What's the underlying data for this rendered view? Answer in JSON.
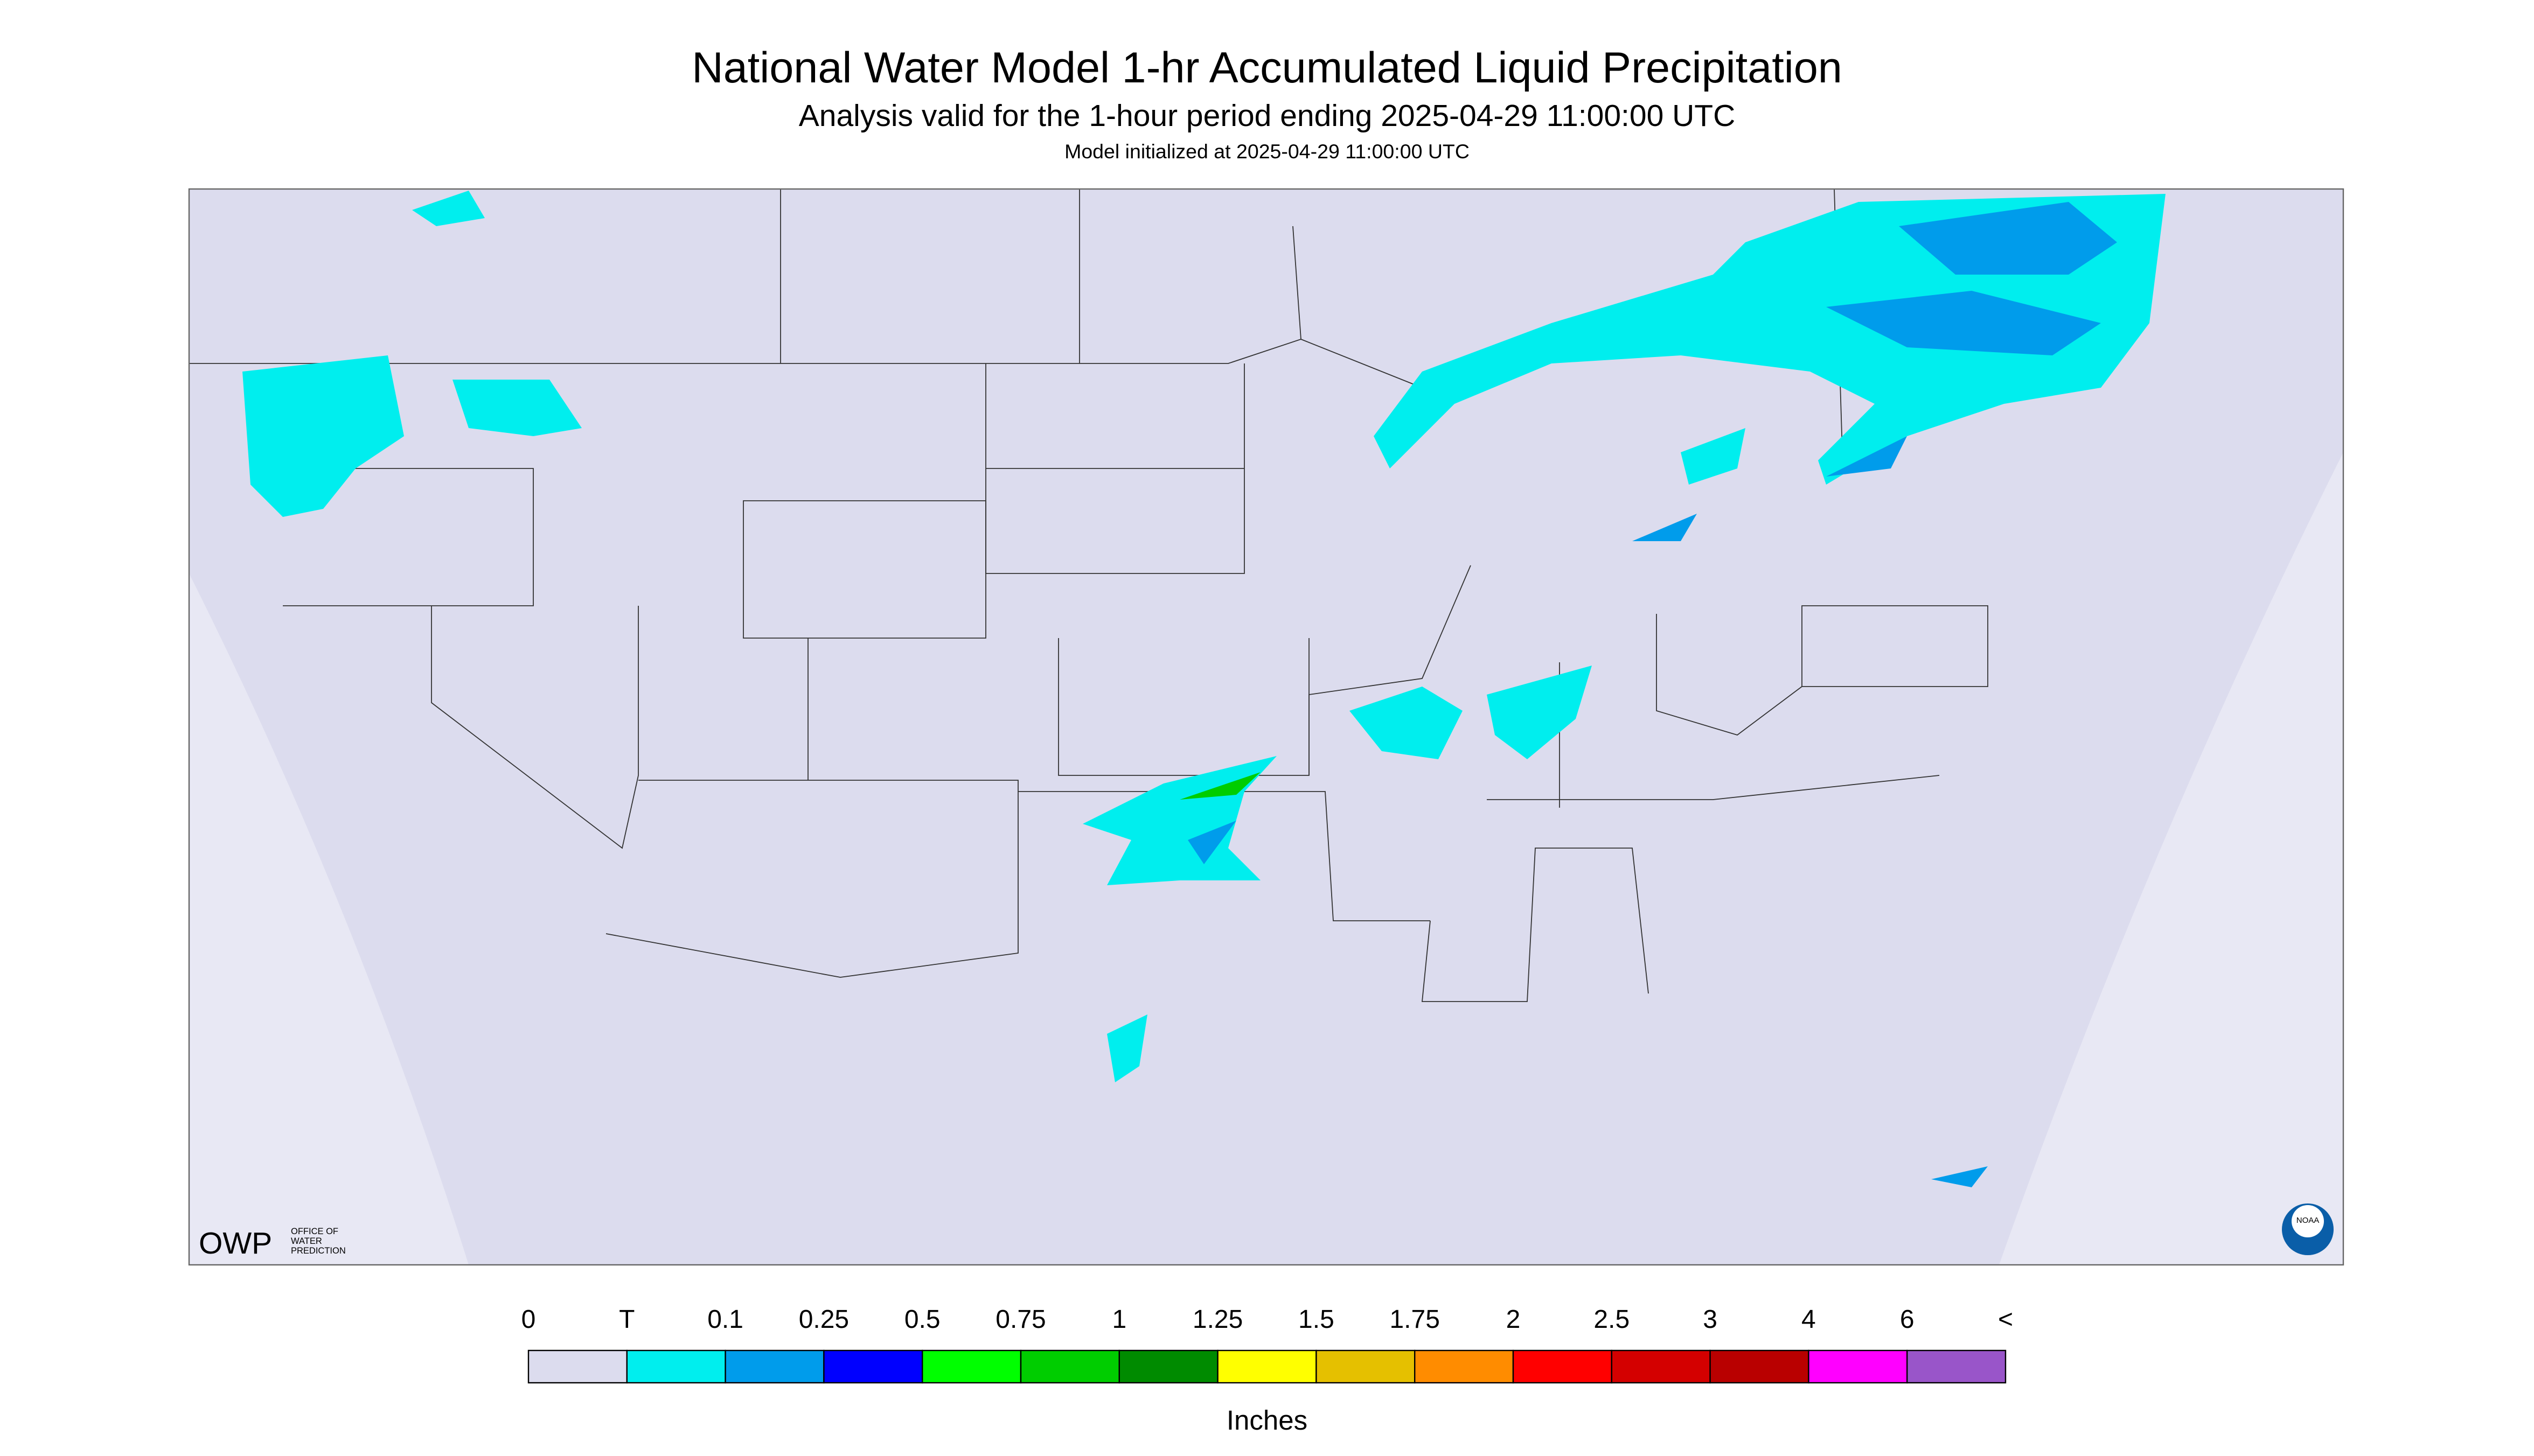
{
  "header": {
    "title": "National Water Model 1-hr Accumulated Liquid Precipitation",
    "subtitle": "Analysis valid for the 1-hour period ending 2025-04-29 11:00:00 UTC",
    "init": "Model initialized at 2025-04-29 11:00:00 UTC"
  },
  "logos": {
    "owp": "OWP",
    "owp_lines": [
      "OFFICE OF",
      "WATER",
      "PREDICTION"
    ],
    "noaa": "NOAA"
  },
  "colorbar": {
    "labels": [
      "0",
      "T",
      "0.1",
      "0.25",
      "0.5",
      "0.75",
      "1",
      "1.25",
      "1.5",
      "1.75",
      "2",
      "2.5",
      "3",
      "4",
      "6",
      "<"
    ],
    "colors": [
      "#dcdcee",
      "#00eeee",
      "#009ceb",
      "#0000ff",
      "#00ff00",
      "#00cd00",
      "#008b00",
      "#ffff00",
      "#e5c000",
      "#ff8c00",
      "#ff0000",
      "#d40000",
      "#b90000",
      "#ff00ff",
      "#9955c9"
    ],
    "unit": "Inches"
  }
}
